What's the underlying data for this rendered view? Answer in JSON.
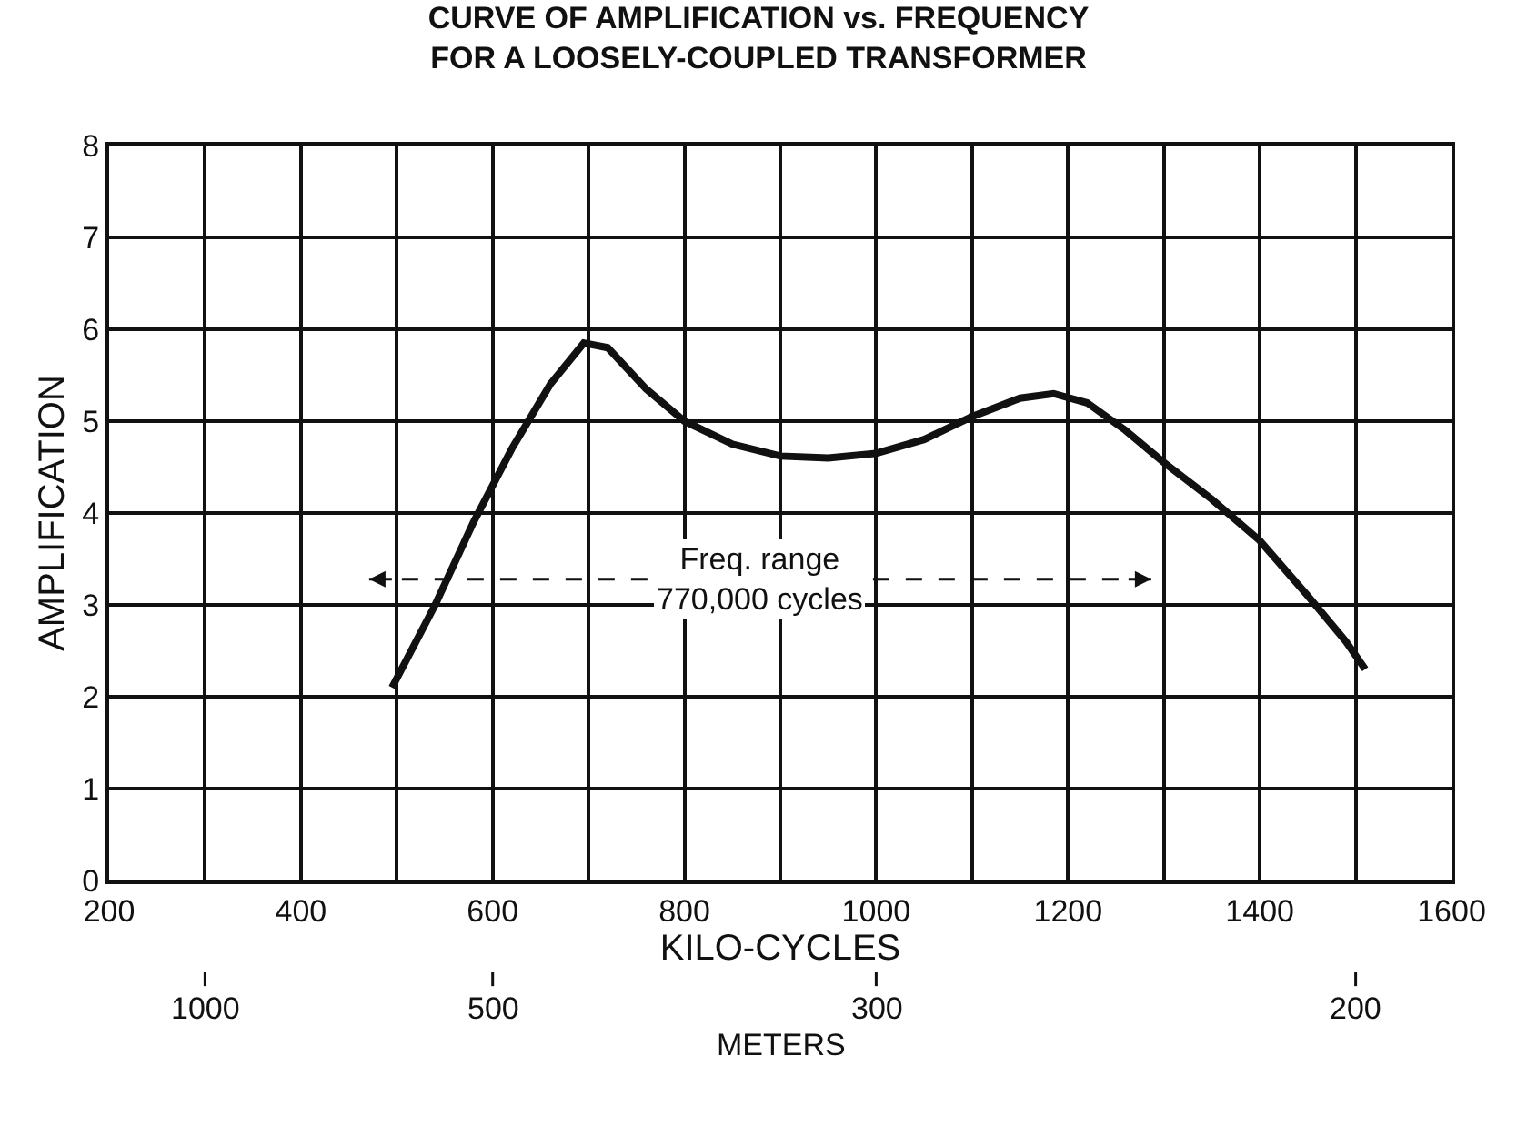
{
  "chart_data": {
    "type": "line",
    "title": "CURVE OF AMPLIFICATION vs. FREQUENCY\nFOR A LOOSELY-COUPLED TRANSFORMER",
    "xlabel": "KILO-CYCLES",
    "ylabel": "AMPLIFICATION",
    "series": [
      {
        "color": "#111111",
        "x": [
          495,
          540,
          580,
          620,
          660,
          695,
          720,
          760,
          800,
          850,
          900,
          950,
          1000,
          1050,
          1100,
          1150,
          1185,
          1220,
          1260,
          1300,
          1350,
          1400,
          1450,
          1490,
          1510
        ],
        "values": [
          2.1,
          3.0,
          3.9,
          4.7,
          5.4,
          5.85,
          5.8,
          5.35,
          5.0,
          4.75,
          4.62,
          4.6,
          4.65,
          4.8,
          5.05,
          5.25,
          5.3,
          5.2,
          4.9,
          4.55,
          4.15,
          3.7,
          3.1,
          2.6,
          2.3
        ]
      }
    ],
    "xlim": [
      200,
      1600
    ],
    "xticks": [
      200,
      {
        "value": 300,
        "label": null
      },
      400,
      {
        "value": 500,
        "label": null
      },
      600,
      {
        "value": 700,
        "label": null
      },
      800,
      {
        "value": 900,
        "label": null
      },
      1000,
      {
        "value": 1100,
        "label": null
      },
      1200,
      {
        "value": 1300,
        "label": null
      },
      1400,
      {
        "value": 1500,
        "label": null
      },
      1600
    ],
    "ylim": [
      0,
      8
    ],
    "yticks": [
      0,
      1,
      2,
      3,
      4,
      5,
      6,
      7,
      8
    ],
    "annotations": [
      "Freq. range\n770,000 cycles",
      "1000",
      "500",
      "300",
      "200",
      "METERS"
    ],
    "grid": true,
    "marker": "none",
    "line_style": "solid"
  }
}
